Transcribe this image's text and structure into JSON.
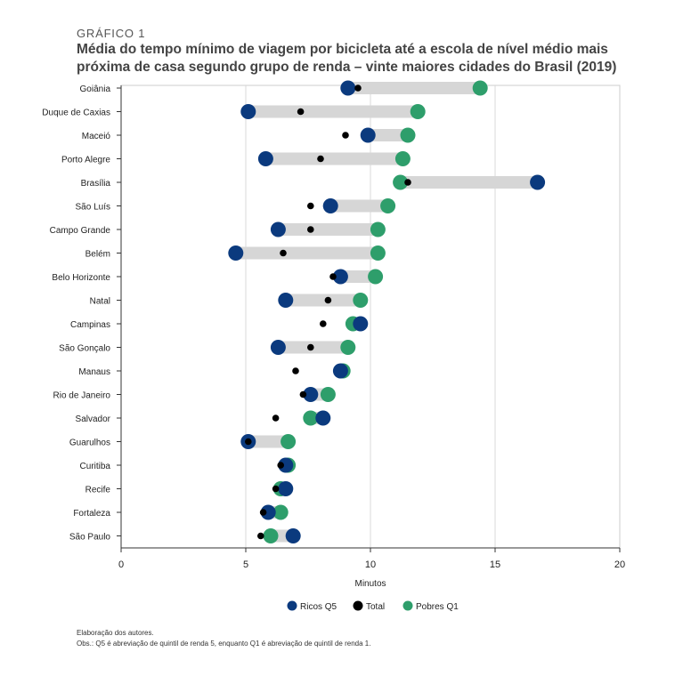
{
  "header": {
    "eyebrow": "GRÁFICO 1",
    "title": "Média do tempo mínimo de viagem por bicicleta até a escola de nível médio mais próxima de casa segundo grupo de renda – vinte maiores cidades do Brasil (2019)"
  },
  "chart_data": {
    "type": "dumbbell",
    "xlabel": "Minutos",
    "xlim": [
      0,
      20
    ],
    "xticks": [
      0,
      5,
      10,
      15,
      20
    ],
    "grid": "vertical gridlines at x ticks",
    "legend_position": "bottom-center",
    "categories": [
      "Goiânia",
      "Duque de Caxias",
      "Maceió",
      "Porto Alegre",
      "Brasília",
      "São Luís",
      "Campo Grande",
      "Belém",
      "Belo Horizonte",
      "Natal",
      "Campinas",
      "São Gonçalo",
      "Manaus",
      "Rio de Janeiro",
      "Salvador",
      "Guarulhos",
      "Curitiba",
      "Recife",
      "Fortaleza",
      "São Paulo"
    ],
    "series": [
      {
        "name": "Ricos Q5",
        "color": "#0b3a7e",
        "values": [
          9.1,
          5.1,
          9.9,
          5.8,
          16.7,
          8.4,
          6.3,
          4.6,
          8.8,
          6.6,
          9.6,
          6.3,
          8.8,
          7.6,
          8.1,
          5.1,
          6.6,
          6.6,
          5.9,
          6.9
        ]
      },
      {
        "name": "Total",
        "color": "#000000",
        "values": [
          9.5,
          7.2,
          9.0,
          8.0,
          11.5,
          7.6,
          7.6,
          6.5,
          8.5,
          8.3,
          8.1,
          7.6,
          7.0,
          7.3,
          6.2,
          5.1,
          6.4,
          6.2,
          5.7,
          5.6
        ]
      },
      {
        "name": "Pobres Q1",
        "color": "#2e9e6b",
        "values": [
          14.4,
          11.9,
          11.5,
          11.3,
          11.2,
          10.7,
          10.3,
          10.3,
          10.2,
          9.6,
          9.3,
          9.1,
          8.9,
          8.3,
          7.6,
          6.7,
          6.7,
          6.4,
          6.4,
          6.0
        ]
      }
    ]
  },
  "legend": [
    "Ricos Q5",
    "Total",
    "Pobres Q1"
  ],
  "footer": {
    "source": "Elaboração dos autores.",
    "obs": "Obs.: Q5 é abreviação de quintil de renda 5, enquanto Q1 é abreviação de quintil de renda 1."
  }
}
